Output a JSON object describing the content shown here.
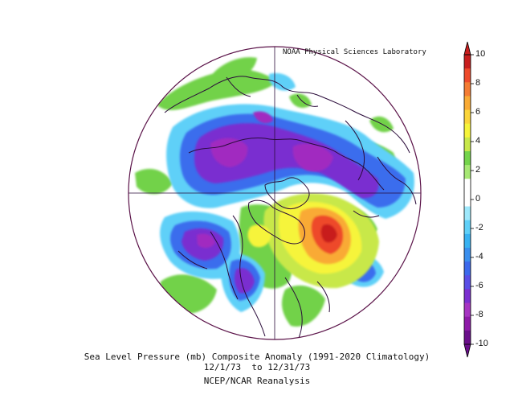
{
  "credit": "NOAA Physical Sciences Laboratory",
  "caption": {
    "line1": "Sea Level Pressure (mb) Composite Anomaly (1991-2020 Climatology)",
    "line2": "12/1/73  to 12/31/73",
    "line3": "NCEP/NCAR Reanalysis"
  },
  "colorbar": {
    "ticks": [
      "10",
      "8",
      "6",
      "4",
      "2",
      "0",
      "-2",
      "-4",
      "-6",
      "-8",
      "-10"
    ],
    "colors": [
      "#6a0f8a",
      "#8e1aa8",
      "#a634c2",
      "#7b2fd0",
      "#5a4ee6",
      "#3c69ec",
      "#3a8fee",
      "#38b2f2",
      "#5fd0f8",
      "#9ee8fb",
      "#ffffff",
      "#ffffff",
      "#a7e874",
      "#74d44b",
      "#c8e84a",
      "#f6f43a",
      "#fbd53a",
      "#f9aa34",
      "#f47c33",
      "#ee4a2b",
      "#c81e1e"
    ]
  },
  "map": {
    "projection": "north polar stereographic",
    "features": [
      {
        "kind": "low",
        "region": "Eurasia / Arctic",
        "level": "-6 to -8"
      },
      {
        "kind": "low",
        "region": "Siberia / East Asia",
        "level": "-6 to -8"
      },
      {
        "kind": "low",
        "region": "North Pacific",
        "level": "-4 to -6"
      },
      {
        "kind": "low",
        "region": "Western North America",
        "level": "-6"
      },
      {
        "kind": "high",
        "region": "Greenland / North Atlantic",
        "level": "+8 to +10"
      },
      {
        "kind": "low",
        "region": "Central Atlantic",
        "level": "-4"
      }
    ]
  }
}
